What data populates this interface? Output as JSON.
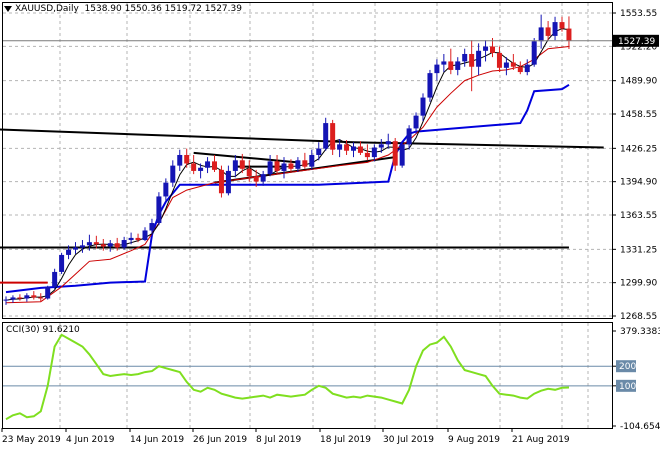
{
  "header": {
    "symbol": "XAUUSD,Daily",
    "ohlc": "1538.90 1550.36 1519.72 1527.39"
  },
  "cci_header": {
    "label": "CCI(30) 91.6210"
  },
  "price_axis": {
    "ticks": [
      "1553.55",
      "1522.20",
      "1489.90",
      "1458.55",
      "1426.25",
      "1394.90",
      "1363.55",
      "1331.25",
      "1299.90",
      "1268.55"
    ],
    "current": "1527.39"
  },
  "cci_axis": {
    "ticks": [
      "379.3383",
      "200",
      "100",
      "-104.654"
    ]
  },
  "date_axis": {
    "labels": [
      "23 May 2019",
      "4 Jun 2019",
      "14 Jun 2019",
      "26 Jun 2019",
      "8 Jul 2019",
      "18 Jul 2019",
      "30 Jul 2019",
      "9 Aug 2019",
      "21 Aug 2019"
    ]
  },
  "colors": {
    "bull": "#1414b4",
    "bear": "#dc1e1e",
    "upper_band": "#0000dd",
    "lower_band": "#cc0000",
    "cci": "#7fdf1f",
    "grid": "#b4b4b4"
  },
  "chart_data": {
    "type": "candlestick",
    "price_range": [
      1268.55,
      1553.55
    ],
    "cci_range": [
      -104.654,
      379.3383
    ],
    "cci_levels": [
      200,
      100
    ],
    "candles": [
      [
        1283,
        1287,
        1279,
        1284
      ],
      [
        1284,
        1288,
        1281,
        1286
      ],
      [
        1286,
        1289,
        1283,
        1285
      ],
      [
        1285,
        1290,
        1282,
        1288
      ],
      [
        1288,
        1292,
        1284,
        1286
      ],
      [
        1286,
        1290,
        1282,
        1285
      ],
      [
        1285,
        1297,
        1284,
        1296
      ],
      [
        1296,
        1313,
        1294,
        1310
      ],
      [
        1310,
        1328,
        1308,
        1326
      ],
      [
        1326,
        1335,
        1322,
        1331
      ],
      [
        1331,
        1338,
        1327,
        1333
      ],
      [
        1333,
        1340,
        1328,
        1335
      ],
      [
        1335,
        1345,
        1330,
        1338
      ],
      [
        1338,
        1344,
        1332,
        1336
      ],
      [
        1336,
        1341,
        1330,
        1334
      ],
      [
        1334,
        1340,
        1329,
        1337
      ],
      [
        1337,
        1342,
        1330,
        1333
      ],
      [
        1333,
        1343,
        1331,
        1340
      ],
      [
        1340,
        1347,
        1336,
        1342
      ],
      [
        1342,
        1346,
        1338,
        1340
      ],
      [
        1340,
        1352,
        1339,
        1349
      ],
      [
        1349,
        1360,
        1346,
        1356
      ],
      [
        1356,
        1385,
        1354,
        1381
      ],
      [
        1381,
        1398,
        1376,
        1394
      ],
      [
        1394,
        1415,
        1390,
        1410
      ],
      [
        1410,
        1425,
        1405,
        1420
      ],
      [
        1420,
        1426,
        1408,
        1412
      ],
      [
        1412,
        1420,
        1402,
        1405
      ],
      [
        1405,
        1412,
        1398,
        1408
      ],
      [
        1408,
        1418,
        1403,
        1414
      ],
      [
        1414,
        1420,
        1404,
        1406
      ],
      [
        1406,
        1410,
        1380,
        1384
      ],
      [
        1384,
        1410,
        1382,
        1405
      ],
      [
        1405,
        1420,
        1399,
        1415
      ],
      [
        1415,
        1421,
        1403,
        1407
      ],
      [
        1407,
        1415,
        1395,
        1400
      ],
      [
        1400,
        1406,
        1390,
        1395
      ],
      [
        1395,
        1405,
        1391,
        1402
      ],
      [
        1402,
        1420,
        1400,
        1414
      ],
      [
        1414,
        1420,
        1402,
        1405
      ],
      [
        1405,
        1418,
        1398,
        1412
      ],
      [
        1412,
        1416,
        1404,
        1407
      ],
      [
        1407,
        1418,
        1404,
        1415
      ],
      [
        1415,
        1422,
        1407,
        1409
      ],
      [
        1409,
        1425,
        1406,
        1420
      ],
      [
        1420,
        1432,
        1415,
        1426
      ],
      [
        1426,
        1455,
        1424,
        1450
      ],
      [
        1450,
        1453,
        1420,
        1425
      ],
      [
        1425,
        1435,
        1418,
        1430
      ],
      [
        1430,
        1434,
        1420,
        1424
      ],
      [
        1424,
        1432,
        1418,
        1428
      ],
      [
        1428,
        1433,
        1420,
        1422
      ],
      [
        1422,
        1430,
        1415,
        1418
      ],
      [
        1418,
        1430,
        1414,
        1427
      ],
      [
        1427,
        1435,
        1422,
        1430
      ],
      [
        1430,
        1440,
        1426,
        1433
      ],
      [
        1433,
        1436,
        1405,
        1410
      ],
      [
        1410,
        1432,
        1408,
        1430
      ],
      [
        1430,
        1448,
        1425,
        1445
      ],
      [
        1445,
        1460,
        1440,
        1457
      ],
      [
        1457,
        1478,
        1452,
        1474
      ],
      [
        1474,
        1500,
        1470,
        1497
      ],
      [
        1497,
        1510,
        1490,
        1505
      ],
      [
        1505,
        1515,
        1498,
        1508
      ],
      [
        1508,
        1520,
        1496,
        1500
      ],
      [
        1500,
        1512,
        1495,
        1508
      ],
      [
        1508,
        1520,
        1503,
        1515
      ],
      [
        1515,
        1528,
        1480,
        1503
      ],
      [
        1503,
        1525,
        1495,
        1518
      ],
      [
        1518,
        1528,
        1508,
        1522
      ],
      [
        1522,
        1530,
        1512,
        1516
      ],
      [
        1516,
        1522,
        1498,
        1502
      ],
      [
        1502,
        1512,
        1495,
        1507
      ],
      [
        1507,
        1515,
        1500,
        1503
      ],
      [
        1503,
        1508,
        1496,
        1498
      ],
      [
        1498,
        1510,
        1495,
        1505
      ],
      [
        1505,
        1530,
        1503,
        1527
      ],
      [
        1527,
        1552,
        1520,
        1540
      ],
      [
        1540,
        1546,
        1528,
        1532
      ],
      [
        1532,
        1550,
        1528,
        1545
      ],
      [
        1545,
        1550,
        1536,
        1539
      ],
      [
        1538.9,
        1550.36,
        1519.72,
        1527.39
      ]
    ],
    "upper_band": [
      [
        0,
        1291
      ],
      [
        5,
        1295
      ],
      [
        10,
        1297
      ],
      [
        15,
        1300
      ],
      [
        20,
        1301
      ],
      [
        21,
        1345
      ],
      [
        22,
        1364
      ],
      [
        23,
        1376
      ],
      [
        25,
        1392
      ],
      [
        45,
        1392
      ],
      [
        55,
        1395
      ],
      [
        56,
        1420
      ],
      [
        57,
        1432
      ],
      [
        58,
        1440
      ],
      [
        59,
        1442
      ],
      [
        70,
        1448
      ],
      [
        74,
        1450
      ],
      [
        75,
        1462
      ],
      [
        76,
        1480
      ],
      [
        80,
        1482
      ],
      [
        81,
        1486
      ]
    ],
    "lower_band": [
      [
        0,
        1281
      ],
      [
        5,
        1282
      ],
      [
        8,
        1296
      ],
      [
        10,
        1308
      ],
      [
        12,
        1320
      ],
      [
        15,
        1322
      ],
      [
        18,
        1330
      ],
      [
        20,
        1336
      ],
      [
        22,
        1356
      ],
      [
        24,
        1380
      ],
      [
        26,
        1387
      ],
      [
        30,
        1394
      ],
      [
        40,
        1403
      ],
      [
        48,
        1410
      ],
      [
        52,
        1413
      ],
      [
        55,
        1420
      ],
      [
        58,
        1434
      ],
      [
        60,
        1446
      ],
      [
        62,
        1465
      ],
      [
        64,
        1478
      ],
      [
        66,
        1490
      ],
      [
        68,
        1495
      ],
      [
        70,
        1499
      ],
      [
        72,
        1500
      ],
      [
        74,
        1503
      ],
      [
        76,
        1510
      ],
      [
        78,
        1520
      ],
      [
        81,
        1522
      ]
    ],
    "trend_lines": [
      {
        "from": [
          -1,
          1300
        ],
        "to": [
          6,
          1300
        ],
        "color": "#cc0000"
      },
      {
        "from": [
          -1,
          1333
        ],
        "to": [
          81,
          1333
        ],
        "color": "#000000"
      },
      {
        "from": [
          -1,
          1444
        ],
        "to": [
          50,
          1432
        ],
        "color": "#000000"
      },
      {
        "from": [
          50,
          1432
        ],
        "to": [
          86,
          1427
        ],
        "color": "#000000"
      },
      {
        "from": [
          27,
          1422
        ],
        "to": [
          42,
          1413
        ],
        "color": "#000000"
      },
      {
        "from": [
          30,
          1394
        ],
        "to": [
          56,
          1418
        ],
        "color": "#000000"
      },
      {
        "from": [
          33,
          1409
        ],
        "to": [
          40,
          1409
        ],
        "color": "#000000"
      }
    ],
    "cci": [
      [
        0,
        -70
      ],
      [
        1,
        -50
      ],
      [
        2,
        -40
      ],
      [
        3,
        -60
      ],
      [
        4,
        -55
      ],
      [
        5,
        -30
      ],
      [
        6,
        100
      ],
      [
        7,
        300
      ],
      [
        8,
        360
      ],
      [
        9,
        340
      ],
      [
        10,
        320
      ],
      [
        11,
        300
      ],
      [
        12,
        260
      ],
      [
        13,
        210
      ],
      [
        14,
        160
      ],
      [
        15,
        150
      ],
      [
        16,
        155
      ],
      [
        17,
        160
      ],
      [
        18,
        155
      ],
      [
        19,
        160
      ],
      [
        20,
        170
      ],
      [
        21,
        175
      ],
      [
        22,
        200
      ],
      [
        23,
        190
      ],
      [
        24,
        180
      ],
      [
        25,
        170
      ],
      [
        26,
        120
      ],
      [
        27,
        80
      ],
      [
        28,
        70
      ],
      [
        29,
        90
      ],
      [
        30,
        80
      ],
      [
        31,
        60
      ],
      [
        32,
        50
      ],
      [
        33,
        40
      ],
      [
        34,
        35
      ],
      [
        35,
        40
      ],
      [
        36,
        45
      ],
      [
        37,
        50
      ],
      [
        38,
        40
      ],
      [
        39,
        55
      ],
      [
        40,
        50
      ],
      [
        41,
        45
      ],
      [
        42,
        50
      ],
      [
        43,
        55
      ],
      [
        44,
        80
      ],
      [
        45,
        100
      ],
      [
        46,
        90
      ],
      [
        47,
        60
      ],
      [
        48,
        50
      ],
      [
        49,
        40
      ],
      [
        50,
        45
      ],
      [
        51,
        40
      ],
      [
        52,
        50
      ],
      [
        53,
        45
      ],
      [
        54,
        40
      ],
      [
        55,
        30
      ],
      [
        56,
        20
      ],
      [
        57,
        10
      ],
      [
        58,
        80
      ],
      [
        59,
        200
      ],
      [
        60,
        280
      ],
      [
        61,
        310
      ],
      [
        62,
        320
      ],
      [
        63,
        350
      ],
      [
        64,
        300
      ],
      [
        65,
        230
      ],
      [
        66,
        180
      ],
      [
        67,
        170
      ],
      [
        68,
        160
      ],
      [
        69,
        150
      ],
      [
        70,
        100
      ],
      [
        71,
        60
      ],
      [
        72,
        55
      ],
      [
        73,
        50
      ],
      [
        74,
        40
      ],
      [
        75,
        35
      ],
      [
        76,
        60
      ],
      [
        77,
        75
      ],
      [
        78,
        85
      ],
      [
        79,
        80
      ],
      [
        80,
        90
      ],
      [
        81,
        91.621
      ]
    ]
  }
}
